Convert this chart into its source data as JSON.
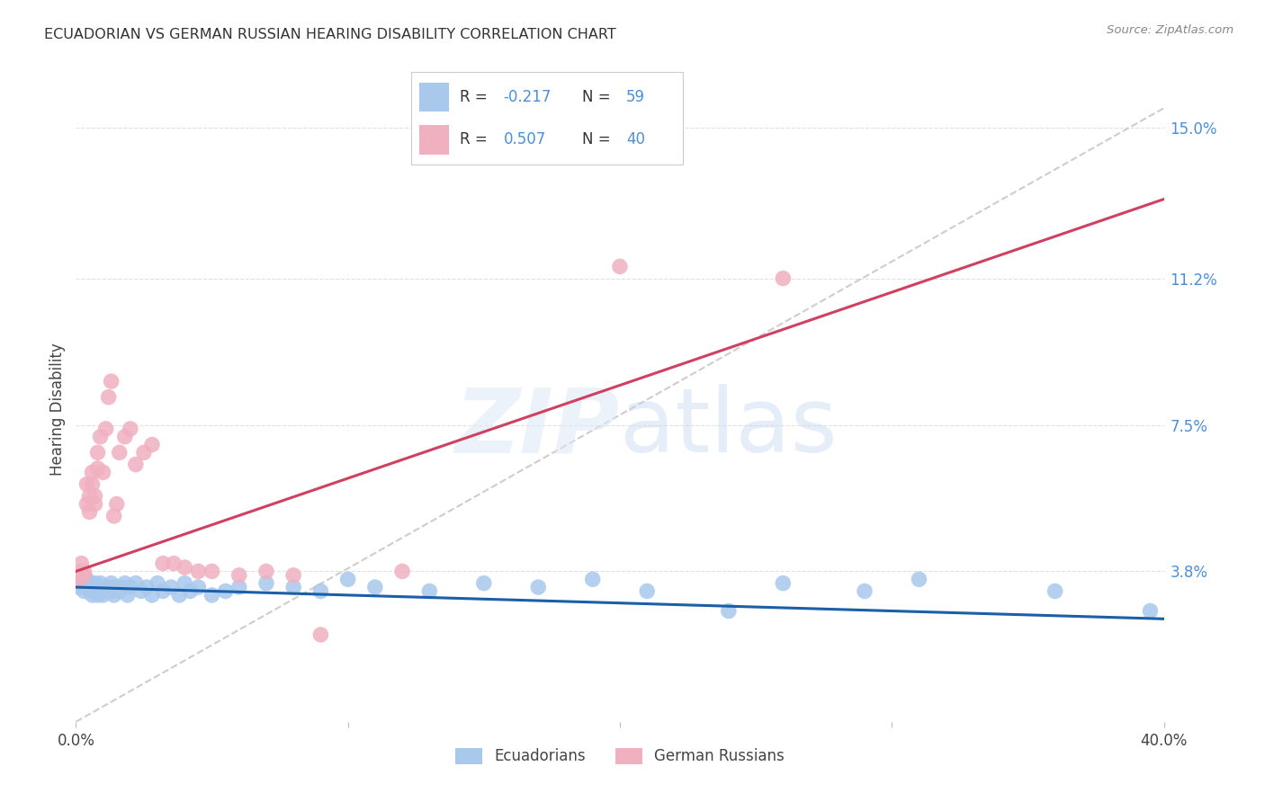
{
  "title": "ECUADORIAN VS GERMAN RUSSIAN HEARING DISABILITY CORRELATION CHART",
  "source": "Source: ZipAtlas.com",
  "ylabel": "Hearing Disability",
  "xlim": [
    0,
    0.4
  ],
  "ylim": [
    0,
    0.158
  ],
  "yticks": [
    0.038,
    0.075,
    0.112,
    0.15
  ],
  "ytick_labels": [
    "3.8%",
    "7.5%",
    "11.2%",
    "15.0%"
  ],
  "xticks": [
    0.0,
    0.1,
    0.2,
    0.3,
    0.4
  ],
  "xtick_labels": [
    "0.0%",
    "",
    "",
    "",
    "40.0%"
  ],
  "blue_color": "#a8c8ec",
  "pink_color": "#f0b0c0",
  "blue_line_color": "#1a5fa8",
  "pink_line_color": "#d04060",
  "ref_line_color": "#c8c8c8",
  "label_color": "#4a90d9",
  "text_color": "#444444",
  "grid_color": "#e0e0e0",
  "blue_scatter_x": [
    0.001,
    0.002,
    0.003,
    0.003,
    0.004,
    0.004,
    0.005,
    0.005,
    0.006,
    0.006,
    0.007,
    0.007,
    0.008,
    0.008,
    0.009,
    0.009,
    0.01,
    0.01,
    0.011,
    0.012,
    0.013,
    0.013,
    0.014,
    0.015,
    0.016,
    0.017,
    0.018,
    0.019,
    0.02,
    0.022,
    0.024,
    0.026,
    0.028,
    0.03,
    0.032,
    0.035,
    0.038,
    0.04,
    0.042,
    0.045,
    0.05,
    0.055,
    0.06,
    0.07,
    0.08,
    0.09,
    0.1,
    0.11,
    0.13,
    0.15,
    0.17,
    0.19,
    0.21,
    0.24,
    0.26,
    0.29,
    0.31,
    0.36,
    0.395
  ],
  "blue_scatter_y": [
    0.034,
    0.036,
    0.033,
    0.035,
    0.034,
    0.036,
    0.033,
    0.035,
    0.032,
    0.034,
    0.033,
    0.035,
    0.034,
    0.032,
    0.033,
    0.035,
    0.034,
    0.032,
    0.033,
    0.034,
    0.035,
    0.033,
    0.032,
    0.034,
    0.033,
    0.034,
    0.035,
    0.032,
    0.034,
    0.035,
    0.033,
    0.034,
    0.032,
    0.035,
    0.033,
    0.034,
    0.032,
    0.035,
    0.033,
    0.034,
    0.032,
    0.033,
    0.034,
    0.035,
    0.034,
    0.033,
    0.036,
    0.034,
    0.033,
    0.035,
    0.034,
    0.036,
    0.033,
    0.028,
    0.035,
    0.033,
    0.036,
    0.033,
    0.028
  ],
  "pink_scatter_x": [
    0.001,
    0.002,
    0.002,
    0.003,
    0.003,
    0.004,
    0.004,
    0.005,
    0.005,
    0.006,
    0.006,
    0.007,
    0.007,
    0.008,
    0.008,
    0.009,
    0.01,
    0.011,
    0.012,
    0.013,
    0.014,
    0.015,
    0.016,
    0.018,
    0.02,
    0.022,
    0.025,
    0.028,
    0.032,
    0.036,
    0.04,
    0.045,
    0.05,
    0.06,
    0.07,
    0.08,
    0.09,
    0.12,
    0.2,
    0.26
  ],
  "pink_scatter_y": [
    0.036,
    0.038,
    0.04,
    0.037,
    0.038,
    0.055,
    0.06,
    0.053,
    0.057,
    0.06,
    0.063,
    0.055,
    0.057,
    0.064,
    0.068,
    0.072,
    0.063,
    0.074,
    0.082,
    0.086,
    0.052,
    0.055,
    0.068,
    0.072,
    0.074,
    0.065,
    0.068,
    0.07,
    0.04,
    0.04,
    0.039,
    0.038,
    0.038,
    0.037,
    0.038,
    0.037,
    0.022,
    0.038,
    0.115,
    0.112
  ],
  "blue_trend_x0": 0.0,
  "blue_trend_y0": 0.034,
  "blue_trend_x1": 0.4,
  "blue_trend_y1": 0.026,
  "pink_trend_x0": 0.0,
  "pink_trend_y0": 0.038,
  "pink_trend_x1": 0.4,
  "pink_trend_y1": 0.132,
  "ref_line_x0": 0.0,
  "ref_line_y0": 0.0,
  "ref_line_x1": 0.4,
  "ref_line_y1": 0.155
}
